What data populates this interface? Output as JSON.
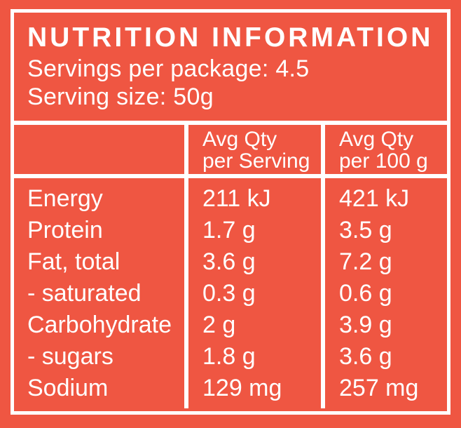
{
  "colors": {
    "background": "#EF5642",
    "text": "#FFFFFF",
    "line": "#FFFFFF"
  },
  "panel": {
    "title": "NUTRITION INFORMATION",
    "servings_per_package": "Servings per package: 4.5",
    "serving_size": "Serving size: 50g"
  },
  "table": {
    "header": {
      "nutrient_col": "",
      "per_serving": {
        "line1": "Avg Qty",
        "line2": "per Serving"
      },
      "per_100g": {
        "line1": "Avg Qty",
        "line2": "per 100 g"
      }
    },
    "rows": [
      {
        "nutrient": "Energy",
        "per_serving": "211 kJ",
        "per_100g": "421 kJ"
      },
      {
        "nutrient": "Protein",
        "per_serving": "1.7 g",
        "per_100g": "3.5 g"
      },
      {
        "nutrient": "Fat, total",
        "per_serving": "3.6 g",
        "per_100g": "7.2 g"
      },
      {
        "nutrient": "- saturated",
        "per_serving": "0.3 g",
        "per_100g": "0.6 g"
      },
      {
        "nutrient": "Carbohydrate",
        "per_serving": "2 g",
        "per_100g": "3.9 g"
      },
      {
        "nutrient": "- sugars",
        "per_serving": "1.8 g",
        "per_100g": "3.6 g"
      },
      {
        "nutrient": "Sodium",
        "per_serving": "129 mg",
        "per_100g": "257 mg"
      }
    ]
  }
}
